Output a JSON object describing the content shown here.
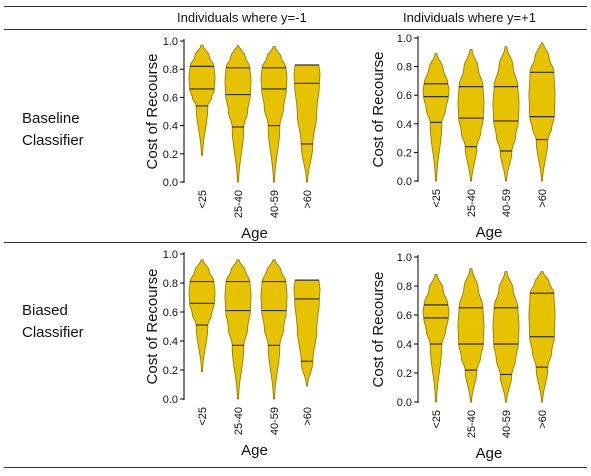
{
  "header": {
    "col1": "Individuals where y=-1",
    "col2": "Individuals where y=+1"
  },
  "rows": [
    {
      "label_line1": "Baseline",
      "label_line2": "Classifier"
    },
    {
      "label_line1": "Biased",
      "label_line2": "Classifier"
    }
  ],
  "colors": {
    "violin_fill": "#e6c200",
    "violin_stroke": "#8a7400",
    "quartile_line": "#333333"
  },
  "chart_data": [
    {
      "type": "violin",
      "xlabel": "Age",
      "ylabel": "Cost of Recourse",
      "ylim": [
        0.0,
        1.0
      ],
      "yticks": [
        "0.0",
        "0.2",
        "0.4",
        "0.6",
        "0.8",
        "1.0"
      ],
      "categories": [
        "<25",
        "25-40",
        "40-59",
        ">60"
      ],
      "series": [
        {
          "category": "<25",
          "min": 0.19,
          "max": 0.97,
          "quartiles": [
            0.54,
            0.66,
            0.82
          ]
        },
        {
          "category": "25-40",
          "min": 0.0,
          "max": 0.97,
          "quartiles": [
            0.39,
            0.62,
            0.81
          ]
        },
        {
          "category": "40-59",
          "min": 0.0,
          "max": 0.96,
          "quartiles": [
            0.4,
            0.66,
            0.81
          ]
        },
        {
          "category": ">60",
          "min": 0.0,
          "max": 0.83,
          "quartiles": [
            0.27,
            0.7,
            0.83
          ]
        }
      ]
    },
    {
      "type": "violin",
      "xlabel": "Age",
      "ylabel": "Cost of Recourse",
      "ylim": [
        0.0,
        1.0
      ],
      "yticks": [
        "0.0",
        "0.2",
        "0.4",
        "0.6",
        "0.8",
        "1.0"
      ],
      "categories": [
        "<25",
        "25-40",
        "40-59",
        ">60"
      ],
      "series": [
        {
          "category": "<25",
          "min": 0.0,
          "max": 0.89,
          "quartiles": [
            0.41,
            0.59,
            0.68
          ]
        },
        {
          "category": "25-40",
          "min": 0.0,
          "max": 0.92,
          "quartiles": [
            0.24,
            0.44,
            0.66
          ]
        },
        {
          "category": "40-59",
          "min": 0.0,
          "max": 0.94,
          "quartiles": [
            0.21,
            0.42,
            0.66
          ]
        },
        {
          "category": ">60",
          "min": 0.0,
          "max": 0.97,
          "quartiles": [
            0.29,
            0.45,
            0.76
          ]
        }
      ]
    },
    {
      "type": "violin",
      "xlabel": "Age",
      "ylabel": "Cost of Recourse",
      "ylim": [
        0.0,
        1.0
      ],
      "yticks": [
        "0.0",
        "0.2",
        "0.4",
        "0.6",
        "0.8",
        "1.0"
      ],
      "categories": [
        "<25",
        "25-40",
        "40-59",
        ">60"
      ],
      "series": [
        {
          "category": "<25",
          "min": 0.19,
          "max": 0.96,
          "quartiles": [
            0.51,
            0.66,
            0.81
          ]
        },
        {
          "category": "25-40",
          "min": 0.0,
          "max": 0.96,
          "quartiles": [
            0.37,
            0.61,
            0.81
          ]
        },
        {
          "category": "40-59",
          "min": 0.0,
          "max": 0.96,
          "quartiles": [
            0.37,
            0.61,
            0.81
          ]
        },
        {
          "category": ">60",
          "min": 0.09,
          "max": 0.82,
          "quartiles": [
            0.26,
            0.69,
            0.82
          ]
        }
      ]
    },
    {
      "type": "violin",
      "xlabel": "Age",
      "ylabel": "Cost of Recourse",
      "ylim": [
        0.0,
        1.0
      ],
      "yticks": [
        "0.0",
        "0.2",
        "0.4",
        "0.6",
        "0.8",
        "1.0"
      ],
      "categories": [
        "<25",
        "25-40",
        "40-59",
        ">60"
      ],
      "series": [
        {
          "category": "<25",
          "min": 0.0,
          "max": 0.88,
          "quartiles": [
            0.4,
            0.58,
            0.67
          ]
        },
        {
          "category": "25-40",
          "min": 0.0,
          "max": 0.92,
          "quartiles": [
            0.22,
            0.4,
            0.65
          ]
        },
        {
          "category": "40-59",
          "min": 0.0,
          "max": 0.9,
          "quartiles": [
            0.19,
            0.4,
            0.65
          ]
        },
        {
          "category": ">60",
          "min": 0.0,
          "max": 0.9,
          "quartiles": [
            0.24,
            0.45,
            0.75
          ]
        }
      ]
    }
  ]
}
